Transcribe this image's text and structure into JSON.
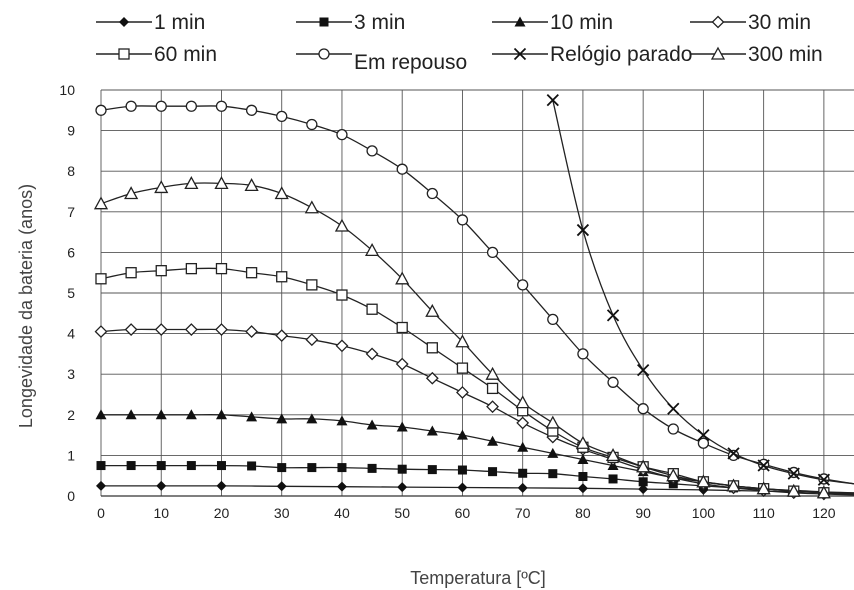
{
  "chart_data": {
    "type": "line",
    "title": "",
    "xlabel": "Temperatura [ºC]",
    "ylabel": "Longevidade da bateria (anos)",
    "xlim": [
      0,
      125
    ],
    "ylim": [
      0,
      10
    ],
    "xticks": [
      0,
      10,
      20,
      30,
      40,
      50,
      60,
      70,
      80,
      90,
      100,
      110,
      120
    ],
    "yticks": [
      0,
      1,
      2,
      3,
      4,
      5,
      6,
      7,
      8,
      9,
      10
    ],
    "grid": true,
    "legend_position": "top",
    "series": [
      {
        "name": "1 min",
        "marker": "filled-diamond",
        "x": [
          0,
          10,
          20,
          30,
          40,
          50,
          60,
          70,
          80,
          90,
          100,
          110,
          120,
          125
        ],
        "y": [
          0.25,
          0.25,
          0.25,
          0.24,
          0.23,
          0.22,
          0.21,
          0.2,
          0.19,
          0.17,
          0.15,
          0.12,
          0.09,
          0.07
        ]
      },
      {
        "name": "3 min",
        "marker": "filled-square",
        "x": [
          0,
          5,
          10,
          15,
          20,
          25,
          30,
          35,
          40,
          45,
          50,
          55,
          60,
          65,
          70,
          75,
          80,
          85,
          90,
          95,
          100,
          105,
          110,
          115,
          120,
          125
        ],
        "y": [
          0.75,
          0.75,
          0.75,
          0.75,
          0.75,
          0.74,
          0.7,
          0.7,
          0.7,
          0.68,
          0.66,
          0.65,
          0.64,
          0.6,
          0.56,
          0.55,
          0.48,
          0.42,
          0.35,
          0.3,
          0.25,
          0.2,
          0.17,
          0.14,
          0.1,
          0.08
        ]
      },
      {
        "name": "10 min",
        "marker": "filled-triangle",
        "x": [
          0,
          5,
          10,
          15,
          20,
          25,
          30,
          35,
          40,
          45,
          50,
          55,
          60,
          65,
          70,
          75,
          80,
          85,
          90,
          95,
          100,
          105,
          110,
          115,
          120,
          125
        ],
        "y": [
          2.0,
          2.0,
          2.0,
          2.0,
          2.0,
          1.95,
          1.9,
          1.9,
          1.85,
          1.75,
          1.7,
          1.6,
          1.5,
          1.35,
          1.2,
          1.05,
          0.9,
          0.75,
          0.6,
          0.45,
          0.35,
          0.25,
          0.18,
          0.13,
          0.08,
          0.05
        ]
      },
      {
        "name": "30 min",
        "marker": "open-diamond",
        "x": [
          0,
          5,
          10,
          15,
          20,
          25,
          30,
          35,
          40,
          45,
          50,
          55,
          60,
          65,
          70,
          75,
          80,
          85,
          90,
          95,
          100,
          105,
          110,
          115,
          120,
          125
        ],
        "y": [
          4.05,
          4.1,
          4.1,
          4.1,
          4.1,
          4.05,
          3.95,
          3.85,
          3.7,
          3.5,
          3.25,
          2.9,
          2.55,
          2.2,
          1.8,
          1.45,
          1.15,
          0.9,
          0.65,
          0.45,
          0.3,
          0.2,
          0.13,
          0.08,
          0.05,
          0.03
        ]
      },
      {
        "name": "60 min",
        "marker": "open-square",
        "x": [
          0,
          5,
          10,
          15,
          20,
          25,
          30,
          35,
          40,
          45,
          50,
          55,
          60,
          65,
          70,
          75,
          80,
          85,
          90,
          95,
          100,
          105,
          110,
          115,
          120,
          125
        ],
        "y": [
          5.35,
          5.5,
          5.55,
          5.6,
          5.6,
          5.5,
          5.4,
          5.2,
          4.95,
          4.6,
          4.15,
          3.65,
          3.15,
          2.65,
          2.1,
          1.6,
          1.2,
          0.95,
          0.72,
          0.55,
          0.35,
          0.25,
          0.18,
          0.12,
          0.08,
          0.05
        ]
      },
      {
        "name": "Em repouso",
        "marker": "open-circle",
        "x": [
          0,
          5,
          10,
          15,
          20,
          25,
          30,
          35,
          40,
          45,
          50,
          55,
          60,
          65,
          70,
          75,
          80,
          85,
          90,
          95,
          100,
          105,
          110,
          115,
          120,
          125
        ],
        "y": [
          9.5,
          9.6,
          9.6,
          9.6,
          9.6,
          9.5,
          9.35,
          9.15,
          8.9,
          8.5,
          8.05,
          7.45,
          6.8,
          6.0,
          5.2,
          4.35,
          3.5,
          2.8,
          2.15,
          1.65,
          1.3,
          1.0,
          0.78,
          0.58,
          0.42,
          0.3
        ]
      },
      {
        "name": "Relógio parado",
        "marker": "x-cross",
        "x": [
          75,
          80,
          85,
          90,
          95,
          100,
          105,
          110,
          115,
          120,
          125
        ],
        "y": [
          9.75,
          6.55,
          4.45,
          3.1,
          2.15,
          1.5,
          1.05,
          0.75,
          0.55,
          0.4,
          0.3
        ]
      },
      {
        "name": "300 min",
        "marker": "open-triangle",
        "x": [
          0,
          5,
          10,
          15,
          20,
          25,
          30,
          35,
          40,
          45,
          50,
          55,
          60,
          65,
          70,
          75,
          80,
          85,
          90,
          95,
          100,
          105,
          110,
          115,
          120,
          125
        ],
        "y": [
          7.2,
          7.45,
          7.6,
          7.7,
          7.7,
          7.65,
          7.45,
          7.1,
          6.65,
          6.05,
          5.35,
          4.55,
          3.8,
          3.0,
          2.3,
          1.8,
          1.3,
          1.0,
          0.72,
          0.5,
          0.35,
          0.25,
          0.18,
          0.12,
          0.08,
          0.05
        ]
      }
    ]
  }
}
